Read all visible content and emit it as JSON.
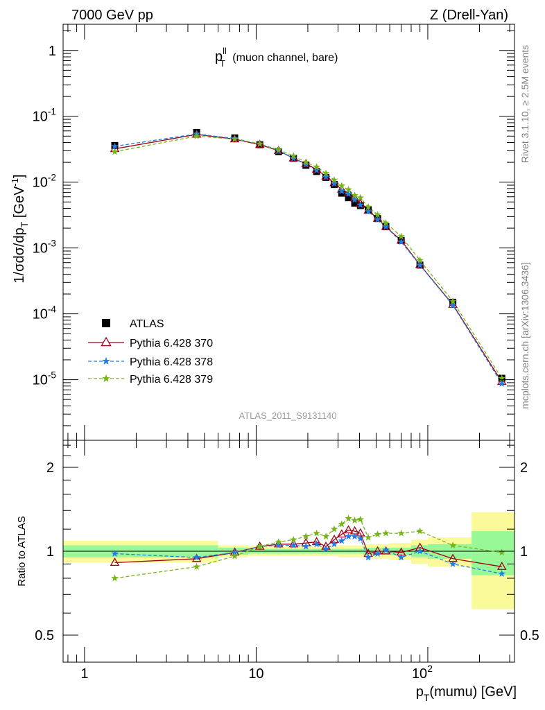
{
  "header": {
    "left": "7000 GeV pp",
    "right": "Z (Drell-Yan)"
  },
  "plot_title": {
    "main": "p",
    "sup": "ll",
    "sub": "T",
    "rest": " (muon channel, bare)"
  },
  "side_labels": {
    "rivet": "Rivet 3.1.10, ≥ 2.5M events",
    "mcplots": "mcplots.cern.ch [arXiv:1306.3436]"
  },
  "analysis_id": "ATLAS_2011_S9131140",
  "colors": {
    "data": "#000000",
    "s370": "#a00018",
    "s378": "#1e7ee6",
    "s379": "#76b51a",
    "band_inner": "#98f898",
    "band_outer": "#fafa9b"
  },
  "chart_data": [
    {
      "type": "scatter",
      "title": "",
      "ylabel": "1/σdσ/dp_T [GeV⁻¹]",
      "xlabel": "",
      "xscale": "log",
      "yscale": "log",
      "xlim": [
        0.75,
        320
      ],
      "ylim": [
        1.2e-06,
        2.5
      ],
      "x_ticks": [
        "1",
        "10",
        "10^2"
      ],
      "y_ticks": [
        "10^-5",
        "10^-4",
        "10^-3",
        "10^-2",
        "10^-1",
        "1"
      ],
      "legend_position": "lower-left",
      "x": [
        1.5,
        4.5,
        7.5,
        10.5,
        13.5,
        16.5,
        19.5,
        22.5,
        25.5,
        28.5,
        31.5,
        34.5,
        37.5,
        40.5,
        45,
        51,
        57,
        70,
        90,
        140,
        270
      ],
      "series": [
        {
          "name": "ATLAS",
          "marker": "square",
          "values": [
            0.036,
            0.057,
            0.047,
            0.037,
            0.029,
            0.023,
            0.018,
            0.0145,
            0.0118,
            0.0092,
            0.0068,
            0.0058,
            0.0048,
            0.0044,
            0.0038,
            0.0028,
            0.0021,
            0.0013,
            0.00055,
            0.00015,
            1.05e-05
          ]
        },
        {
          "name": "Pythia 6.428 370",
          "marker": "open-triangle",
          "line": "solid",
          "values": [
            0.032,
            0.053,
            0.045,
            0.037,
            0.03,
            0.023,
            0.019,
            0.0156,
            0.0122,
            0.0097,
            0.0077,
            0.0069,
            0.0057,
            0.0047,
            0.0037,
            0.0028,
            0.0021,
            0.0013,
            0.000555,
            0.000138,
            9.3e-06
          ]
        },
        {
          "name": "Pythia 6.428 378",
          "marker": "star",
          "line": "dashed",
          "values": [
            0.035,
            0.054,
            0.046,
            0.038,
            0.03,
            0.023,
            0.0186,
            0.0152,
            0.012,
            0.0095,
            0.0073,
            0.0066,
            0.0054,
            0.0045,
            0.0036,
            0.0027,
            0.0021,
            0.00124,
            0.00055,
            0.000135,
            8.7e-06
          ]
        },
        {
          "name": "Pythia 6.428 379",
          "marker": "star",
          "line": "dashed",
          "values": [
            0.029,
            0.05,
            0.045,
            0.038,
            0.031,
            0.025,
            0.02,
            0.017,
            0.0136,
            0.0108,
            0.0088,
            0.0077,
            0.0063,
            0.0058,
            0.0042,
            0.0032,
            0.0024,
            0.0015,
            0.00065,
            0.000155,
            1.05e-05
          ]
        }
      ]
    },
    {
      "type": "scatter",
      "title": "",
      "ylabel": "Ratio to ATLAS",
      "xlabel": "p_T(mumu) [GeV]",
      "xscale": "log",
      "yscale": "log",
      "xlim": [
        0.75,
        320
      ],
      "ylim": [
        0.4,
        2.5
      ],
      "x_ticks": [
        "1",
        "10",
        "10^2"
      ],
      "y_ticks": [
        "0.5",
        "1",
        "2"
      ],
      "x": [
        1.5,
        4.5,
        7.5,
        10.5,
        13.5,
        16.5,
        19.5,
        22.5,
        25.5,
        28.5,
        31.5,
        34.5,
        37.5,
        40.5,
        45,
        51,
        57,
        70,
        90,
        140,
        270
      ],
      "bin_edges": [
        0.75,
        3,
        6,
        9,
        12,
        15,
        18,
        21,
        24,
        27,
        30,
        33,
        36,
        39,
        42,
        48,
        54,
        60,
        80,
        100,
        180,
        320
      ],
      "bands": {
        "inner_half_width": [
          0.05,
          0.05,
          0.03,
          0.02,
          0.02,
          0.02,
          0.02,
          0.02,
          0.02,
          0.02,
          0.02,
          0.02,
          0.02,
          0.02,
          0.03,
          0.03,
          0.03,
          0.03,
          0.05,
          0.06,
          0.18
        ],
        "outer_half_width": [
          0.09,
          0.09,
          0.05,
          0.04,
          0.04,
          0.04,
          0.04,
          0.04,
          0.04,
          0.04,
          0.05,
          0.05,
          0.05,
          0.05,
          0.06,
          0.06,
          0.06,
          0.07,
          0.1,
          0.12,
          0.38
        ]
      },
      "series": [
        {
          "name": "Pythia 6.428 370",
          "values": [
            0.91,
            0.94,
            0.99,
            1.04,
            1.06,
            1.06,
            1.07,
            1.08,
            1.04,
            1.1,
            1.15,
            1.19,
            1.18,
            1.16,
            0.98,
            1.0,
            1.0,
            0.99,
            1.03,
            0.94,
            0.88
          ]
        },
        {
          "name": "Pythia 6.428 378",
          "values": [
            0.98,
            0.95,
            0.99,
            1.04,
            1.05,
            1.05,
            1.04,
            1.06,
            1.02,
            1.06,
            1.09,
            1.13,
            1.13,
            1.11,
            0.95,
            0.98,
            1.01,
            0.95,
            1.0,
            0.9,
            0.83
          ]
        },
        {
          "name": "Pythia 6.428 379",
          "values": [
            0.8,
            0.88,
            0.96,
            1.04,
            1.08,
            1.1,
            1.13,
            1.16,
            1.13,
            1.2,
            1.25,
            1.31,
            1.29,
            1.3,
            1.12,
            1.15,
            1.16,
            1.16,
            1.18,
            1.05,
            0.99
          ]
        }
      ]
    }
  ]
}
